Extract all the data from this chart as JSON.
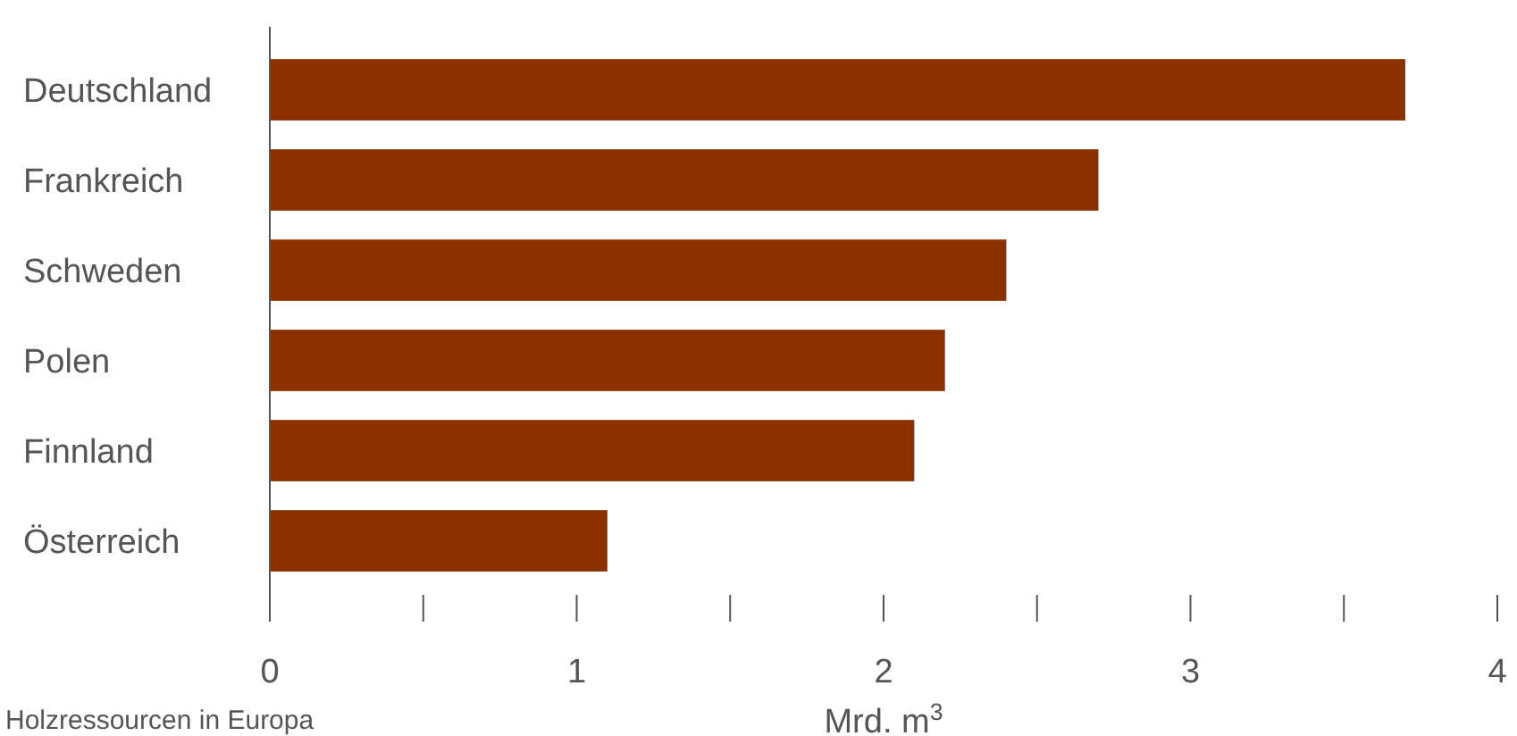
{
  "chart_data": {
    "type": "bar",
    "orientation": "horizontal",
    "categories": [
      "Deutschland",
      "Frankreich",
      "Schweden",
      "Polen",
      "Finnland",
      "Österreich"
    ],
    "values": [
      3.7,
      2.7,
      2.4,
      2.2,
      2.1,
      1.1
    ],
    "color": "#8b3100",
    "xlim": [
      0,
      4
    ],
    "xticks": [
      0,
      {
        "value": 0.5,
        "label": null
      },
      1,
      {
        "value": 1.5,
        "label": null
      },
      2,
      {
        "value": 2.5,
        "label": null
      },
      3,
      {
        "value": 3.5,
        "label": null
      },
      4
    ],
    "xlabel": "Mrd. m$^{3}$",
    "annotations": [
      "Holzressourcen in Europa"
    ],
    "grid": false
  }
}
